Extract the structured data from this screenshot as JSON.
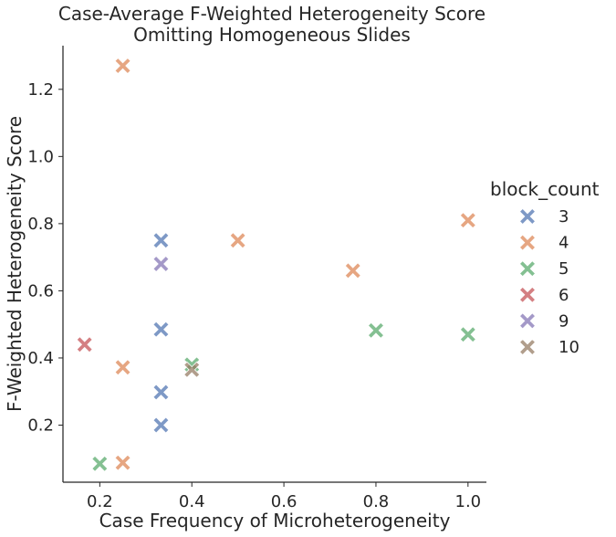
{
  "chart_data": {
    "type": "scatter",
    "title_lines": [
      "Case-Average F-Weighted Heterogeneity Score",
      "Omitting Homogeneous Slides"
    ],
    "xlabel": "Case Frequency of Microheterogeneity",
    "ylabel": "F-Weighted Heterogeneity Score",
    "xlim": [
      0.12,
      1.04
    ],
    "ylim": [
      0.03,
      1.33
    ],
    "xticks": [
      0.2,
      0.4,
      0.6,
      0.8,
      1.0
    ],
    "xtick_labels": [
      "0.2",
      "0.4",
      "0.6",
      "0.8",
      "1.0"
    ],
    "yticks": [
      0.2,
      0.4,
      0.6,
      0.8,
      1.0,
      1.2
    ],
    "ytick_labels": [
      "0.2",
      "0.4",
      "0.6",
      "0.8",
      "1.0",
      "1.2"
    ],
    "grid": false,
    "marker": "X",
    "legend": {
      "title": "block_count",
      "placement": "right outside",
      "entries": [
        "3",
        "4",
        "5",
        "6",
        "9",
        "10"
      ]
    },
    "series": [
      {
        "name": "3",
        "color": "#4c72b0",
        "points": [
          [
            0.333,
            0.75
          ],
          [
            0.333,
            0.485
          ],
          [
            0.333,
            0.298
          ],
          [
            0.333,
            0.2
          ]
        ]
      },
      {
        "name": "4",
        "color": "#dd8452",
        "points": [
          [
            0.25,
            1.27
          ],
          [
            0.5,
            0.75
          ],
          [
            0.75,
            0.66
          ],
          [
            1.0,
            0.81
          ],
          [
            0.25,
            0.372
          ],
          [
            0.25,
            0.088
          ]
        ]
      },
      {
        "name": "5",
        "color": "#55a868",
        "points": [
          [
            0.8,
            0.482
          ],
          [
            1.0,
            0.47
          ],
          [
            0.4,
            0.38
          ],
          [
            0.2,
            0.085
          ]
        ]
      },
      {
        "name": "6",
        "color": "#c44e52",
        "points": [
          [
            0.167,
            0.44
          ]
        ]
      },
      {
        "name": "9",
        "color": "#8172b3",
        "points": [
          [
            0.333,
            0.68
          ]
        ]
      },
      {
        "name": "10",
        "color": "#937860",
        "points": [
          [
            0.4,
            0.365
          ]
        ]
      }
    ]
  }
}
